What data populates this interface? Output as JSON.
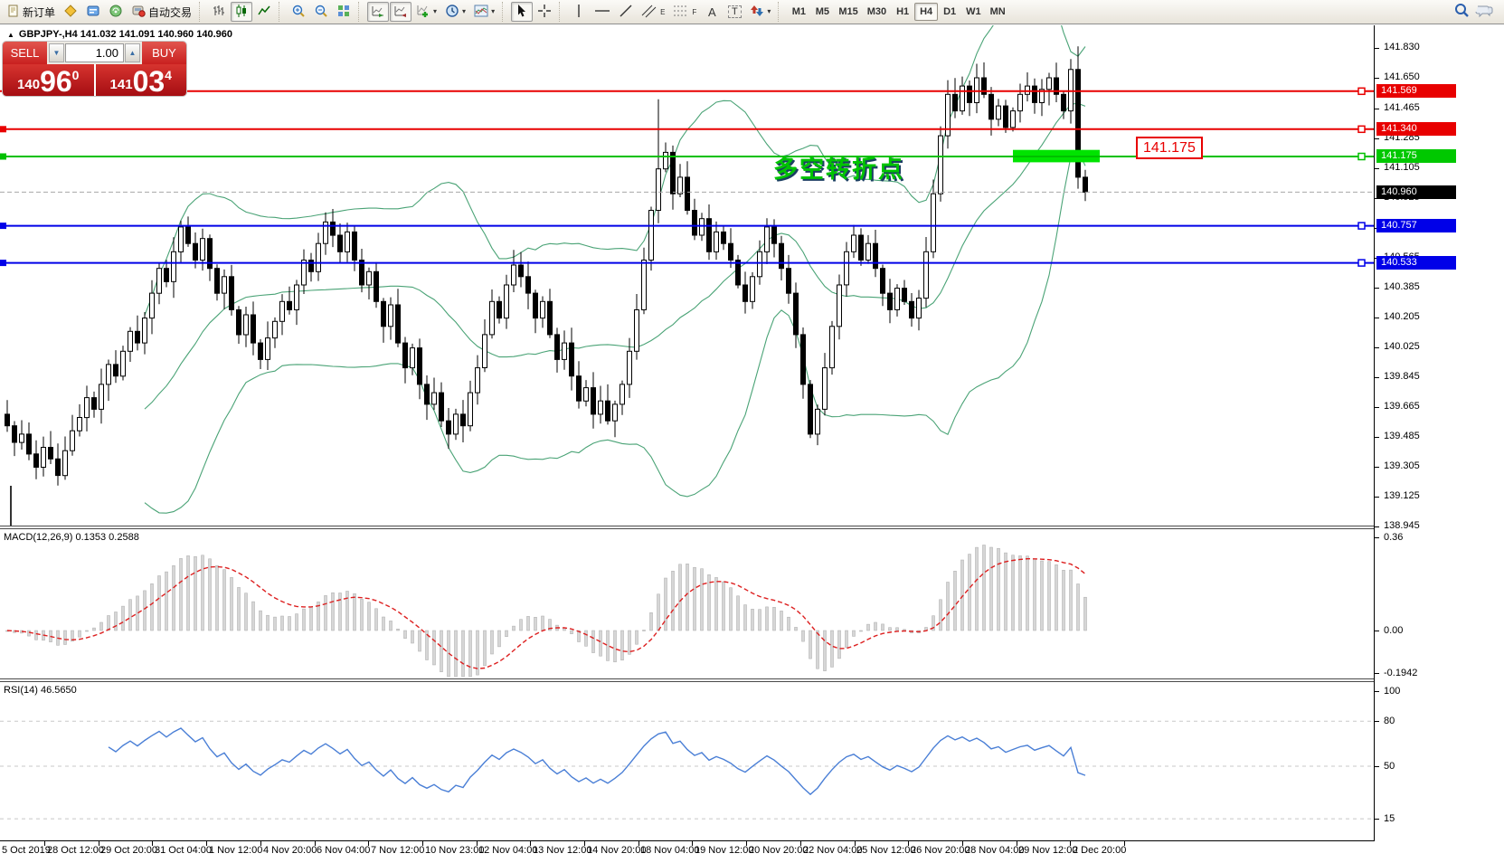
{
  "toolbar": {
    "new_order": "新订单",
    "autotrading": "自动交易",
    "glyphs": {
      "text_tool": "A",
      "label_tool": "T",
      "channel_sub": "E",
      "fibo_sub": "F",
      "caret": "▾",
      "spin_down": "▼",
      "spin_up": "▲",
      "collapse": "▲"
    },
    "timeframes": [
      "M1",
      "M5",
      "M15",
      "M30",
      "H1",
      "H4",
      "D1",
      "W1",
      "MN"
    ],
    "active_timeframe": "H4"
  },
  "symbol_bar": {
    "text": "GBPJPY-,H4  141.032 141.091 140.960 140.960"
  },
  "trade_panel": {
    "sell_label": "SELL",
    "buy_label": "BUY",
    "volume": "1.00",
    "sell_price": {
      "small": "140",
      "big": "96",
      "pip": "0"
    },
    "buy_price": {
      "small": "141",
      "big": "03",
      "pip": "4"
    }
  },
  "annotation": {
    "turning_point": "多空转折点",
    "price_callout": "141.175"
  },
  "chart_data": {
    "type": "candlestick",
    "symbol": "GBPJPY-",
    "timeframe": "H4",
    "quote": {
      "open": 141.032,
      "high": 141.091,
      "low": 140.96,
      "close": 140.96
    },
    "ylim": [
      138.9,
      141.92
    ],
    "y_axis_ticks": [
      141.83,
      141.65,
      141.465,
      141.285,
      141.105,
      140.925,
      140.745,
      140.565,
      140.385,
      140.205,
      140.025,
      139.845,
      139.665,
      139.485,
      139.305,
      139.125,
      138.945
    ],
    "price_lines": [
      {
        "price": 141.569,
        "color": "#e80000",
        "width": 2,
        "tag_bg": "#e80000",
        "left_marker": false,
        "right_marker": true
      },
      {
        "price": 141.34,
        "color": "#e80000",
        "width": 2,
        "tag_bg": "#e80000",
        "left_marker": true,
        "right_marker": true
      },
      {
        "price": 141.175,
        "color": "#00c000",
        "width": 2,
        "tag_bg": "#00c800",
        "left_marker": true,
        "right_marker": true
      },
      {
        "price": 140.96,
        "color": "#a8a8a8",
        "width": 1,
        "tag_bg": "#000000",
        "style": "dash",
        "left_marker": false,
        "right_marker": false
      },
      {
        "price": 140.757,
        "color": "#0000e8",
        "width": 2,
        "tag_bg": "#0000e8",
        "left_marker": true,
        "right_marker": true
      },
      {
        "price": 140.533,
        "color": "#0000e8",
        "width": 2,
        "tag_bg": "#0000e8",
        "left_marker": true,
        "right_marker": true
      }
    ],
    "time_labels": [
      "5 Oct 2019",
      "28 Oct 12:00",
      "29 Oct 20:00",
      "31 Oct 04:00",
      "1 Nov 12:00",
      "4 Nov 20:00",
      "6 Nov 04:00",
      "7 Nov 12:00",
      "10 Nov 23:00",
      "12 Nov 04:00",
      "13 Nov 12:00",
      "14 Nov 20:00",
      "18 Nov 04:00",
      "19 Nov 12:00",
      "20 Nov 20:00",
      "22 Nov 04:00",
      "25 Nov 12:00",
      "26 Nov 20:00",
      "28 Nov 04:00",
      "29 Nov 12:00",
      "2 Dec 20:00"
    ],
    "closes": [
      139.55,
      139.45,
      139.5,
      139.38,
      139.3,
      139.42,
      139.35,
      139.25,
      139.4,
      139.52,
      139.6,
      139.72,
      139.65,
      139.8,
      139.92,
      139.85,
      140.0,
      140.12,
      140.05,
      140.2,
      140.35,
      140.5,
      140.42,
      140.6,
      140.75,
      140.65,
      140.55,
      140.68,
      140.5,
      140.35,
      140.45,
      140.25,
      140.1,
      140.22,
      140.05,
      139.95,
      140.08,
      140.18,
      140.3,
      140.25,
      140.4,
      140.55,
      140.48,
      140.65,
      140.78,
      140.7,
      140.6,
      140.72,
      140.55,
      140.4,
      140.48,
      140.3,
      140.15,
      140.28,
      140.05,
      139.9,
      140.02,
      139.8,
      139.68,
      139.75,
      139.58,
      139.5,
      139.62,
      139.55,
      139.75,
      139.9,
      140.1,
      140.3,
      140.2,
      140.4,
      140.52,
      140.45,
      140.35,
      140.2,
      140.3,
      140.1,
      139.95,
      140.05,
      139.85,
      139.7,
      139.78,
      139.62,
      139.7,
      139.58,
      139.68,
      139.8,
      140.0,
      140.25,
      140.55,
      140.85,
      141.1,
      141.2,
      140.95,
      141.05,
      140.85,
      140.7,
      140.8,
      140.6,
      140.72,
      140.65,
      140.55,
      140.4,
      140.3,
      140.45,
      140.6,
      140.75,
      140.65,
      140.5,
      140.35,
      140.1,
      139.8,
      139.5,
      139.65,
      139.9,
      140.15,
      140.4,
      140.6,
      140.7,
      140.55,
      140.65,
      140.5,
      140.35,
      140.25,
      140.38,
      140.3,
      140.2,
      140.32,
      140.6,
      140.95,
      141.3,
      141.55,
      141.45,
      141.6,
      141.5,
      141.65,
      141.55,
      141.4,
      141.48,
      141.35,
      141.45,
      141.55,
      141.6,
      141.5,
      141.58,
      141.65,
      141.55,
      141.45,
      141.7,
      141.05,
      140.96
    ],
    "bollinger": {
      "period": 20,
      "deviation": 2,
      "color": "#4aa376"
    },
    "macd": {
      "label": "MACD(12,26,9) 0.1353 0.2588",
      "params": [
        12,
        26,
        9
      ],
      "values_text": [
        "0.1353",
        "0.2588"
      ],
      "axis_labels": [
        "0.36",
        "0.00",
        "-0.1942"
      ],
      "axis_values": [
        0.36,
        0,
        -0.1942
      ],
      "hist_color": "#d6d6d6",
      "hist_border": "#a8a8a8",
      "signal_color": "#dd2020"
    },
    "rsi": {
      "label": "RSI(14) 46.5650",
      "period": 14,
      "value": "46.5650",
      "levels": [
        80,
        50,
        15
      ],
      "axis_labels": [
        "100",
        "80",
        "50",
        "15"
      ],
      "axis_values": [
        100,
        80,
        50,
        15
      ],
      "color": "#4a7fd6",
      "level_color": "#c8c8c8"
    },
    "highlight_box": {
      "from_bar": 139,
      "to_bar": 151,
      "price_top": 141.215,
      "price_bottom": 141.14,
      "color": "#00e400"
    }
  }
}
